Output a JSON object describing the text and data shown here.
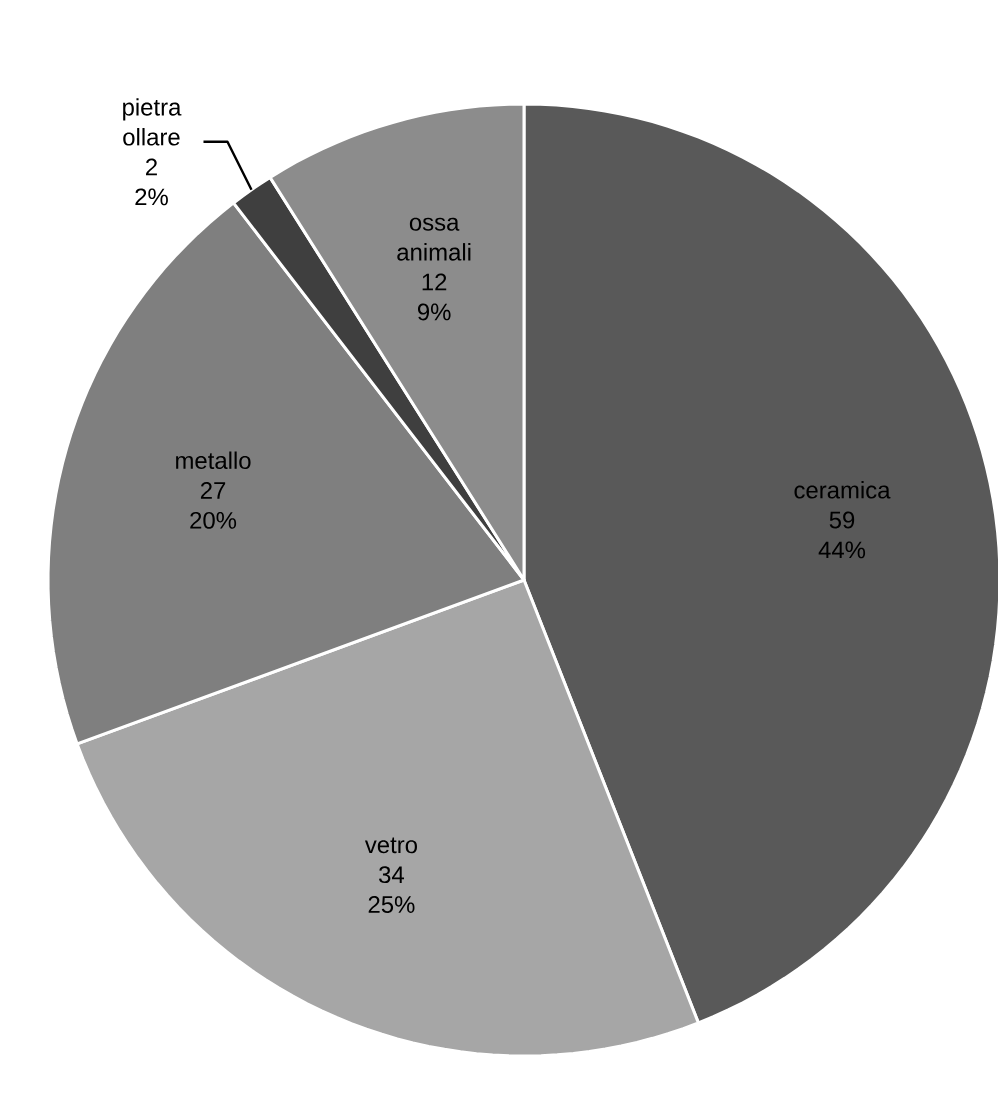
{
  "chart_data": {
    "type": "pie",
    "categories": [
      "ceramica",
      "vetro",
      "metallo",
      "pietra ollare",
      "ossa animali"
    ],
    "values": [
      59,
      34,
      27,
      2,
      12
    ],
    "colors": [
      "#595959",
      "#a6a6a6",
      "#7f7f7f",
      "#3f3f3f",
      "#8c8c8c"
    ],
    "data_labels": true,
    "annotations": [
      {
        "text": "44%",
        "x": "ceramica"
      },
      {
        "text": "25%",
        "x": "vetro"
      },
      {
        "text": "20%",
        "x": "metallo"
      },
      {
        "text": "2%",
        "x": "pietra ollare"
      },
      {
        "text": "9%",
        "x": "ossa animali"
      }
    ]
  }
}
